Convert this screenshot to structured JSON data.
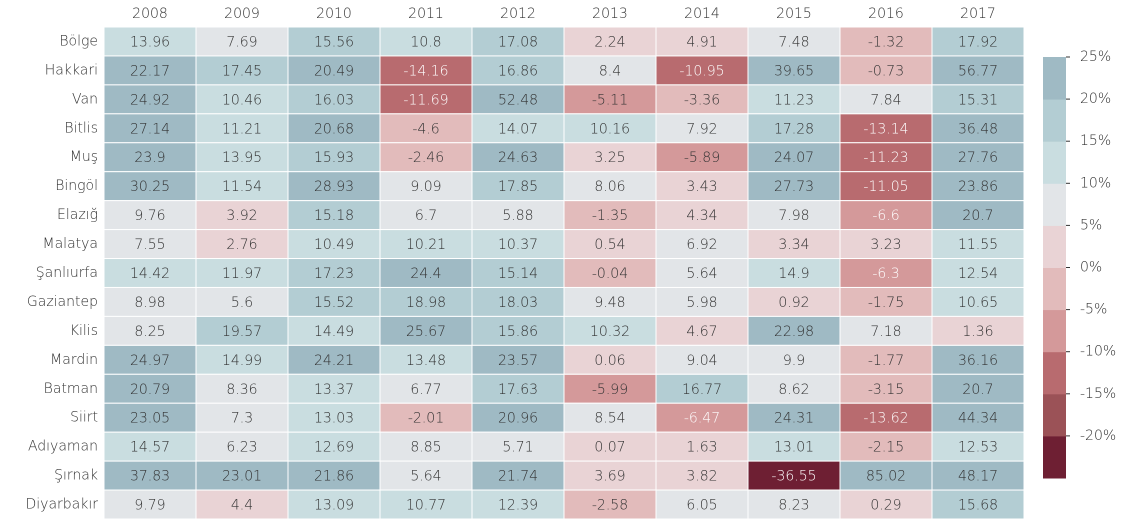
{
  "chart_data": {
    "type": "heatmap",
    "x": [
      "2008",
      "2009",
      "2010",
      "2011",
      "2012",
      "2013",
      "2014",
      "2015",
      "2016",
      "2017"
    ],
    "y": [
      "Bölge",
      "Hakkari",
      "Van",
      "Bitlis",
      "Muş",
      "Bingöl",
      "Elazığ",
      "Malatya",
      "Şanlıurfa",
      "Gaziantep",
      "Kilis",
      "Mardin",
      "Batman",
      "Siirt",
      "Adıyaman",
      "Şırnak",
      "Diyarbakır"
    ],
    "values": [
      [
        13.96,
        7.69,
        15.56,
        10.8,
        17.08,
        2.24,
        4.91,
        7.48,
        -1.32,
        17.92
      ],
      [
        22.17,
        17.45,
        20.49,
        -14.16,
        16.86,
        8.4,
        -10.95,
        39.65,
        -0.73,
        56.77
      ],
      [
        24.92,
        10.46,
        16.03,
        -11.69,
        52.48,
        -5.11,
        -3.36,
        11.23,
        7.84,
        15.31
      ],
      [
        27.14,
        11.21,
        20.68,
        -4.6,
        14.07,
        10.16,
        7.92,
        17.28,
        -13.14,
        36.48
      ],
      [
        23.9,
        13.95,
        15.93,
        -2.46,
        24.63,
        3.25,
        -5.89,
        24.07,
        -11.23,
        27.76
      ],
      [
        30.25,
        11.54,
        28.93,
        9.09,
        17.85,
        8.06,
        3.43,
        27.73,
        -11.05,
        23.86
      ],
      [
        9.76,
        3.92,
        15.18,
        6.7,
        5.88,
        -1.35,
        4.34,
        7.98,
        -6.6,
        20.7
      ],
      [
        7.55,
        2.76,
        10.49,
        10.21,
        10.37,
        0.54,
        6.92,
        3.34,
        3.23,
        11.55
      ],
      [
        14.42,
        11.97,
        17.23,
        24.4,
        15.14,
        -0.04,
        5.64,
        14.9,
        -6.3,
        12.54
      ],
      [
        8.98,
        5.6,
        15.52,
        18.98,
        18.03,
        9.48,
        5.98,
        0.92,
        -1.75,
        10.65
      ],
      [
        8.25,
        19.57,
        14.49,
        25.67,
        15.86,
        10.32,
        4.67,
        22.98,
        7.18,
        1.36
      ],
      [
        24.97,
        14.99,
        24.21,
        13.48,
        23.57,
        0.06,
        9.04,
        9.9,
        -1.77,
        36.16
      ],
      [
        20.79,
        8.36,
        13.37,
        6.77,
        17.63,
        -5.99,
        16.77,
        8.62,
        -3.15,
        20.7
      ],
      [
        23.05,
        7.3,
        13.03,
        -2.01,
        20.96,
        8.54,
        -6.47,
        24.31,
        -13.62,
        44.34
      ],
      [
        14.57,
        6.23,
        12.69,
        8.85,
        5.71,
        0.07,
        1.63,
        13.01,
        -2.15,
        12.53
      ],
      [
        37.83,
        23.01,
        21.86,
        5.64,
        21.74,
        3.69,
        3.82,
        -36.55,
        85.02,
        48.17
      ],
      [
        9.79,
        4.4,
        13.09,
        10.77,
        12.39,
        -2.58,
        6.05,
        8.23,
        0.29,
        15.68
      ]
    ],
    "zlim": [
      -25,
      25
    ],
    "colors": [
      "#6e1f33",
      "#9b5257",
      "#b86b6f",
      "#d4999a",
      "#e2bbbb",
      "#e9d3d5",
      "#e2e5e8",
      "#c9dde0",
      "#b3cdd3",
      "#9fbac4"
    ],
    "zticks": [
      {
        "value": 25,
        "label": "25%"
      },
      {
        "value": 20,
        "label": "20%"
      },
      {
        "value": 15,
        "label": "15%"
      },
      {
        "value": 10,
        "label": "10%"
      },
      {
        "value": 5,
        "label": "5%"
      },
      {
        "value": 0,
        "label": "0%"
      },
      {
        "value": -5,
        "label": "-5%"
      },
      {
        "value": -10,
        "label": "-10%"
      },
      {
        "value": -15,
        "label": "-15%"
      },
      {
        "value": -20,
        "label": "-20%"
      }
    ]
  }
}
